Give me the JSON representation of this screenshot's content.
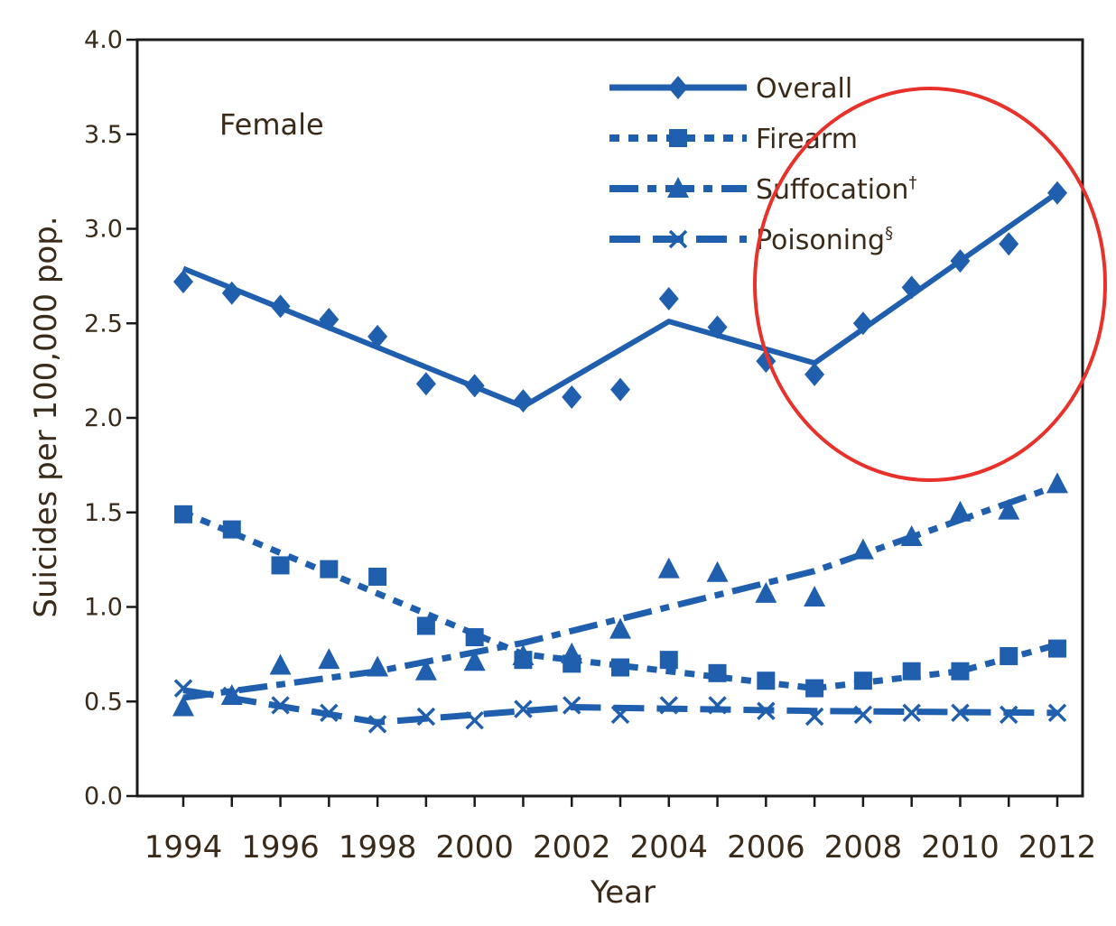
{
  "chart_data": {
    "type": "line",
    "panel_label": "Female",
    "xlabel": "Year",
    "ylabel": "Suicides per 100,000 pop.",
    "ylim": [
      0,
      4
    ],
    "xlim": [
      1994,
      2012
    ],
    "y_ticks": [
      "0.0",
      "0.5",
      "1.0",
      "1.5",
      "2.0",
      "2.5",
      "3.0",
      "3.5",
      "4.0"
    ],
    "x_ticks": [
      "1994",
      "1996",
      "1998",
      "2000",
      "2002",
      "2004",
      "2006",
      "2008",
      "2010",
      "2012"
    ],
    "x": [
      1994,
      1995,
      1996,
      1997,
      1998,
      1999,
      2000,
      2001,
      2002,
      2003,
      2004,
      2005,
      2006,
      2007,
      2008,
      2009,
      2010,
      2011,
      2012
    ],
    "grid": false,
    "legend_position": "top-right",
    "highlight": {
      "shape": "ellipse",
      "color": "#e8312a",
      "around": "Overall 2007-2012"
    },
    "series": [
      {
        "name": "Overall",
        "marker": "diamond",
        "line": "solid",
        "values": [
          2.72,
          2.66,
          2.59,
          2.52,
          2.43,
          2.18,
          2.17,
          2.09,
          2.11,
          2.15,
          2.63,
          2.48,
          2.3,
          2.23,
          2.5,
          2.69,
          2.83,
          2.92,
          3.19
        ],
        "trend": [
          [
            1994,
            2.79
          ],
          [
            2001,
            2.06
          ],
          [
            2004,
            2.51
          ],
          [
            2007,
            2.29
          ],
          [
            2012,
            3.19
          ]
        ]
      },
      {
        "name": "Firearm",
        "marker": "square",
        "line": "dotted",
        "values": [
          1.49,
          1.41,
          1.22,
          1.2,
          1.16,
          0.9,
          0.84,
          0.72,
          0.7,
          0.68,
          0.72,
          0.65,
          0.61,
          0.57,
          0.61,
          0.66,
          0.66,
          0.74,
          0.78
        ],
        "trend": [
          [
            1994,
            1.5
          ],
          [
            2001,
            0.75
          ],
          [
            2007,
            0.57
          ],
          [
            2010,
            0.66
          ],
          [
            2012,
            0.8
          ]
        ]
      },
      {
        "name": "Suffocation",
        "name_mark": "†",
        "marker": "triangle",
        "line": "dash-dot",
        "values": [
          0.47,
          0.53,
          0.69,
          0.72,
          0.68,
          0.66,
          0.71,
          0.74,
          0.75,
          0.88,
          1.2,
          1.18,
          1.07,
          1.05,
          1.3,
          1.37,
          1.5,
          1.51,
          1.65
        ],
        "trend": [
          [
            1994,
            0.52
          ],
          [
            1998,
            0.66
          ],
          [
            2001,
            0.81
          ],
          [
            2007,
            1.19
          ],
          [
            2012,
            1.64
          ]
        ]
      },
      {
        "name": "Poisoning",
        "name_mark": "§",
        "marker": "x",
        "line": "dashed",
        "values": [
          0.57,
          0.53,
          0.48,
          0.44,
          0.38,
          0.42,
          0.4,
          0.46,
          0.48,
          0.43,
          0.48,
          0.48,
          0.45,
          0.42,
          0.43,
          0.44,
          0.44,
          0.43,
          0.44
        ],
        "trend": [
          [
            1994,
            0.56
          ],
          [
            1998,
            0.39
          ],
          [
            2002,
            0.47
          ],
          [
            2007,
            0.45
          ],
          [
            2012,
            0.44
          ]
        ]
      }
    ]
  }
}
